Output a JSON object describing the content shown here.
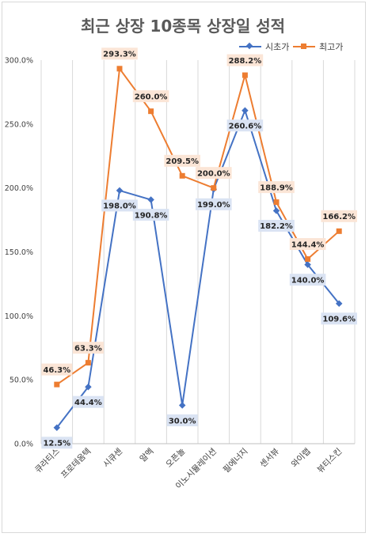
{
  "chart_data": {
    "type": "line",
    "title": "최근 상장 10종목 상장일 성적",
    "xlabel": "",
    "ylabel": "",
    "categories": [
      "큐라티스",
      "프로테옴텍",
      "시큐센",
      "알멕",
      "오픈놀",
      "이노시뮬레이션",
      "필에너지",
      "센서뷰",
      "와이랩",
      "뷰티스킨"
    ],
    "ylim": [
      0,
      300
    ],
    "yticks": [
      "0.0%",
      "50.0%",
      "100.0%",
      "150.0%",
      "200.0%",
      "250.0%",
      "300.0%"
    ],
    "ytick_values": [
      0,
      50,
      100,
      150,
      200,
      250,
      300
    ],
    "grid": "vertical category lines",
    "legend_position": "top-right",
    "series": [
      {
        "name": "시초가",
        "color": "#4472c4",
        "marker": "diamond",
        "label_bg": "#dae3f3",
        "values": [
          12.5,
          44.4,
          198.0,
          190.8,
          30.0,
          199.0,
          260.6,
          182.2,
          140.0,
          109.6
        ],
        "labels": [
          "12.5%",
          "44.4%",
          "198.0%",
          "190.8%",
          "30.0%",
          "199.0%",
          "260.6%",
          "182.2%",
          "140.0%",
          "109.6%"
        ]
      },
      {
        "name": "최고가",
        "color": "#ed7d31",
        "marker": "square",
        "label_bg": "#fbe5d6",
        "values": [
          46.3,
          63.3,
          293.3,
          260.0,
          209.5,
          200.0,
          288.2,
          188.9,
          144.4,
          166.2
        ],
        "labels": [
          "46.3%",
          "63.3%",
          "293.3%",
          "260.0%",
          "209.5%",
          "200.0%",
          "288.2%",
          "188.9%",
          "144.4%",
          "166.2%"
        ]
      }
    ]
  }
}
